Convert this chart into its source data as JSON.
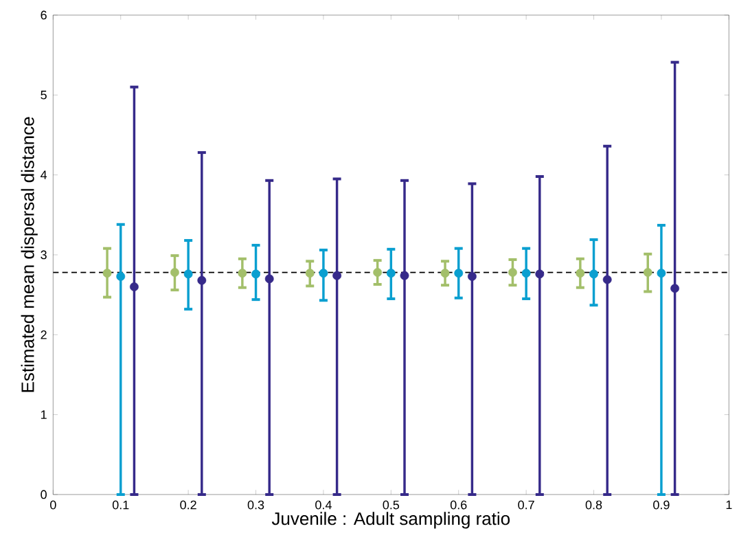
{
  "chart_data": {
    "type": "scatter",
    "xlabel": "Juvenile : Adult sampling ratio",
    "ylabel": "Estimated mean dispersal distance",
    "xlim": [
      0,
      1
    ],
    "ylim": [
      0,
      6
    ],
    "xticks": [
      0,
      0.1,
      0.2,
      0.3,
      0.4,
      0.5,
      0.6,
      0.7,
      0.8,
      0.9,
      1
    ],
    "yticks": [
      0,
      1,
      2,
      3,
      4,
      5,
      6
    ],
    "marker": "circle",
    "ref_lines": [
      {
        "axis": "y",
        "value": 2.78,
        "color": "#000000",
        "line_style": "dashed"
      }
    ],
    "series": [
      {
        "color": "#a3bf6a",
        "x": [
          0.08,
          0.18,
          0.28,
          0.38,
          0.48,
          0.58,
          0.68,
          0.78,
          0.88
        ],
        "values": [
          2.77,
          2.78,
          2.77,
          2.77,
          2.78,
          2.77,
          2.78,
          2.77,
          2.78
        ],
        "errors": [
          [
            2.47,
            3.08
          ],
          [
            2.56,
            2.99
          ],
          [
            2.59,
            2.95
          ],
          [
            2.61,
            2.92
          ],
          [
            2.63,
            2.93
          ],
          [
            2.62,
            2.92
          ],
          [
            2.62,
            2.94
          ],
          [
            2.59,
            2.95
          ],
          [
            2.54,
            3.01
          ]
        ]
      },
      {
        "color": "#0a9fd0",
        "x": [
          0.1,
          0.2,
          0.3,
          0.4,
          0.5,
          0.6,
          0.7,
          0.8,
          0.9
        ],
        "values": [
          2.73,
          2.76,
          2.76,
          2.77,
          2.77,
          2.77,
          2.77,
          2.76,
          2.77
        ],
        "errors": [
          [
            0,
            3.38
          ],
          [
            2.32,
            3.18
          ],
          [
            2.44,
            3.12
          ],
          [
            2.43,
            3.06
          ],
          [
            2.45,
            3.07
          ],
          [
            2.46,
            3.08
          ],
          [
            2.45,
            3.08
          ],
          [
            2.37,
            3.19
          ],
          [
            0,
            3.37
          ]
        ]
      },
      {
        "color": "#362a8a",
        "x": [
          0.12,
          0.22,
          0.32,
          0.42,
          0.52,
          0.62,
          0.72,
          0.82,
          0.92
        ],
        "values": [
          2.6,
          2.68,
          2.7,
          2.74,
          2.74,
          2.73,
          2.76,
          2.69,
          2.58
        ],
        "errors": [
          [
            0,
            5.1
          ],
          [
            0,
            4.28
          ],
          [
            0,
            3.93
          ],
          [
            0,
            3.95
          ],
          [
            0,
            3.93
          ],
          [
            0,
            3.89
          ],
          [
            0,
            3.98
          ],
          [
            0,
            4.36
          ],
          [
            0,
            5.41
          ]
        ]
      }
    ]
  }
}
